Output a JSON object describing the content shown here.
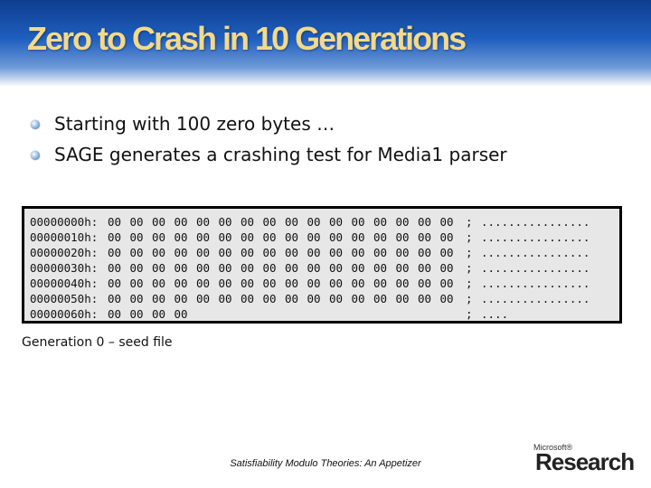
{
  "slide": {
    "title": "Zero to Crash in 10 Generations",
    "bullets": [
      "Starting with 100 zero bytes …",
      "SAGE generates a crashing test for Media1 parser"
    ],
    "caption": "Generation 0 – seed file",
    "footer": "Satisfiability Modulo Theories: An Appetizer",
    "logo_small": "Microsoft®",
    "logo_big": "Research"
  },
  "hexdump": {
    "rows": [
      {
        "addr": "00000000h:",
        "bytes": [
          "00",
          "00",
          "00",
          "00",
          "00",
          "00",
          "00",
          "00",
          "00",
          "00",
          "00",
          "00",
          "00",
          "00",
          "00",
          "00"
        ],
        "sep": ";",
        "ascii": "................"
      },
      {
        "addr": "00000010h:",
        "bytes": [
          "00",
          "00",
          "00",
          "00",
          "00",
          "00",
          "00",
          "00",
          "00",
          "00",
          "00",
          "00",
          "00",
          "00",
          "00",
          "00"
        ],
        "sep": ";",
        "ascii": "................"
      },
      {
        "addr": "00000020h:",
        "bytes": [
          "00",
          "00",
          "00",
          "00",
          "00",
          "00",
          "00",
          "00",
          "00",
          "00",
          "00",
          "00",
          "00",
          "00",
          "00",
          "00"
        ],
        "sep": ";",
        "ascii": "................"
      },
      {
        "addr": "00000030h:",
        "bytes": [
          "00",
          "00",
          "00",
          "00",
          "00",
          "00",
          "00",
          "00",
          "00",
          "00",
          "00",
          "00",
          "00",
          "00",
          "00",
          "00"
        ],
        "sep": ";",
        "ascii": "................"
      },
      {
        "addr": "00000040h:",
        "bytes": [
          "00",
          "00",
          "00",
          "00",
          "00",
          "00",
          "00",
          "00",
          "00",
          "00",
          "00",
          "00",
          "00",
          "00",
          "00",
          "00"
        ],
        "sep": ";",
        "ascii": "................"
      },
      {
        "addr": "00000050h:",
        "bytes": [
          "00",
          "00",
          "00",
          "00",
          "00",
          "00",
          "00",
          "00",
          "00",
          "00",
          "00",
          "00",
          "00",
          "00",
          "00",
          "00"
        ],
        "sep": ";",
        "ascii": "................"
      },
      {
        "addr": "00000060h:",
        "bytes": [
          "00",
          "00",
          "00",
          "00"
        ],
        "sep": ";",
        "ascii": "...."
      }
    ]
  }
}
